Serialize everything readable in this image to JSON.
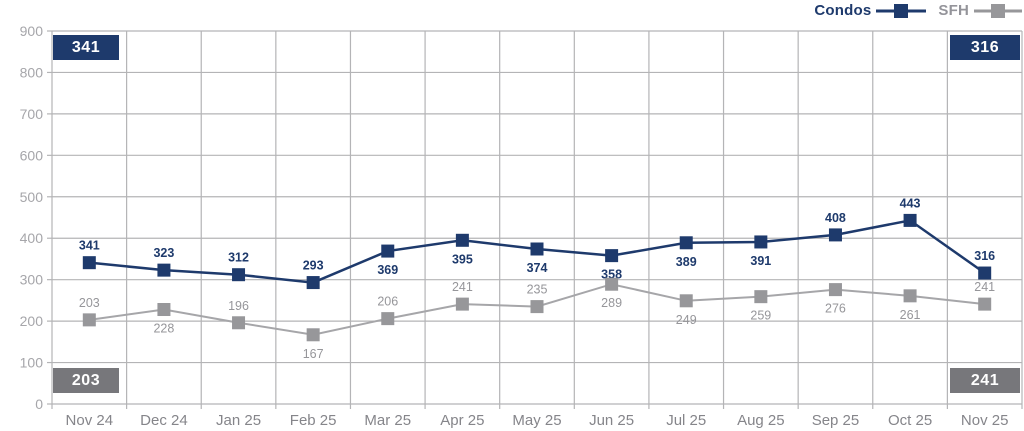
{
  "legend": {
    "series": [
      {
        "label": "Condos",
        "color": "#1e3a6c"
      },
      {
        "label": "SFH",
        "color": "#97979a"
      }
    ]
  },
  "summary_boxes": {
    "top_left": "341",
    "top_right": "316",
    "bottom_left": "203",
    "bottom_right": "241"
  },
  "colors": {
    "navy": "#1e3a6c",
    "gray_series": "#97979a",
    "gray_line": "#a6a6a9",
    "gray_box": "#77777b",
    "gridline": "#b4b4b6",
    "y_axis_label": "#a6a6aa",
    "x_axis_label": "#85858a"
  },
  "chart_data": {
    "type": "line",
    "title": "",
    "xlabel": "",
    "ylabel": "",
    "categories": [
      "Nov 24",
      "Dec 24",
      "Jan 25",
      "Feb 25",
      "Mar 25",
      "Apr 25",
      "May 25",
      "Jun 25",
      "Jul 25",
      "Aug 25",
      "Sep 25",
      "Oct 25",
      "Nov 25"
    ],
    "series": [
      {
        "name": "Condos",
        "color": "#1e3a6c",
        "line_color": "#1e3a6c",
        "label_color": "#1e3a6c",
        "label_weight": "bold",
        "values": [
          341,
          323,
          312,
          293,
          369,
          395,
          374,
          358,
          389,
          391,
          408,
          443,
          316
        ],
        "label_side": [
          "above",
          "above",
          "above",
          "above",
          "below",
          "below",
          "below",
          "below",
          "below",
          "below",
          "above",
          "above",
          "above"
        ]
      },
      {
        "name": "SFH",
        "color": "#97979a",
        "line_color": "#a6a6a9",
        "label_color": "#96969a",
        "label_weight": "normal",
        "values": [
          203,
          228,
          196,
          167,
          206,
          241,
          235,
          289,
          249,
          259,
          276,
          261,
          241
        ],
        "label_side": [
          "above",
          "below",
          "above",
          "below",
          "above",
          "above",
          "above",
          "below",
          "below",
          "below",
          "below",
          "below",
          "above"
        ]
      }
    ],
    "ylim": [
      0,
      900
    ],
    "y_ticks": [
      0,
      100,
      200,
      300,
      400,
      500,
      600,
      700,
      800,
      900
    ],
    "grid": true,
    "legend_position": "top-right",
    "marker": "square"
  }
}
